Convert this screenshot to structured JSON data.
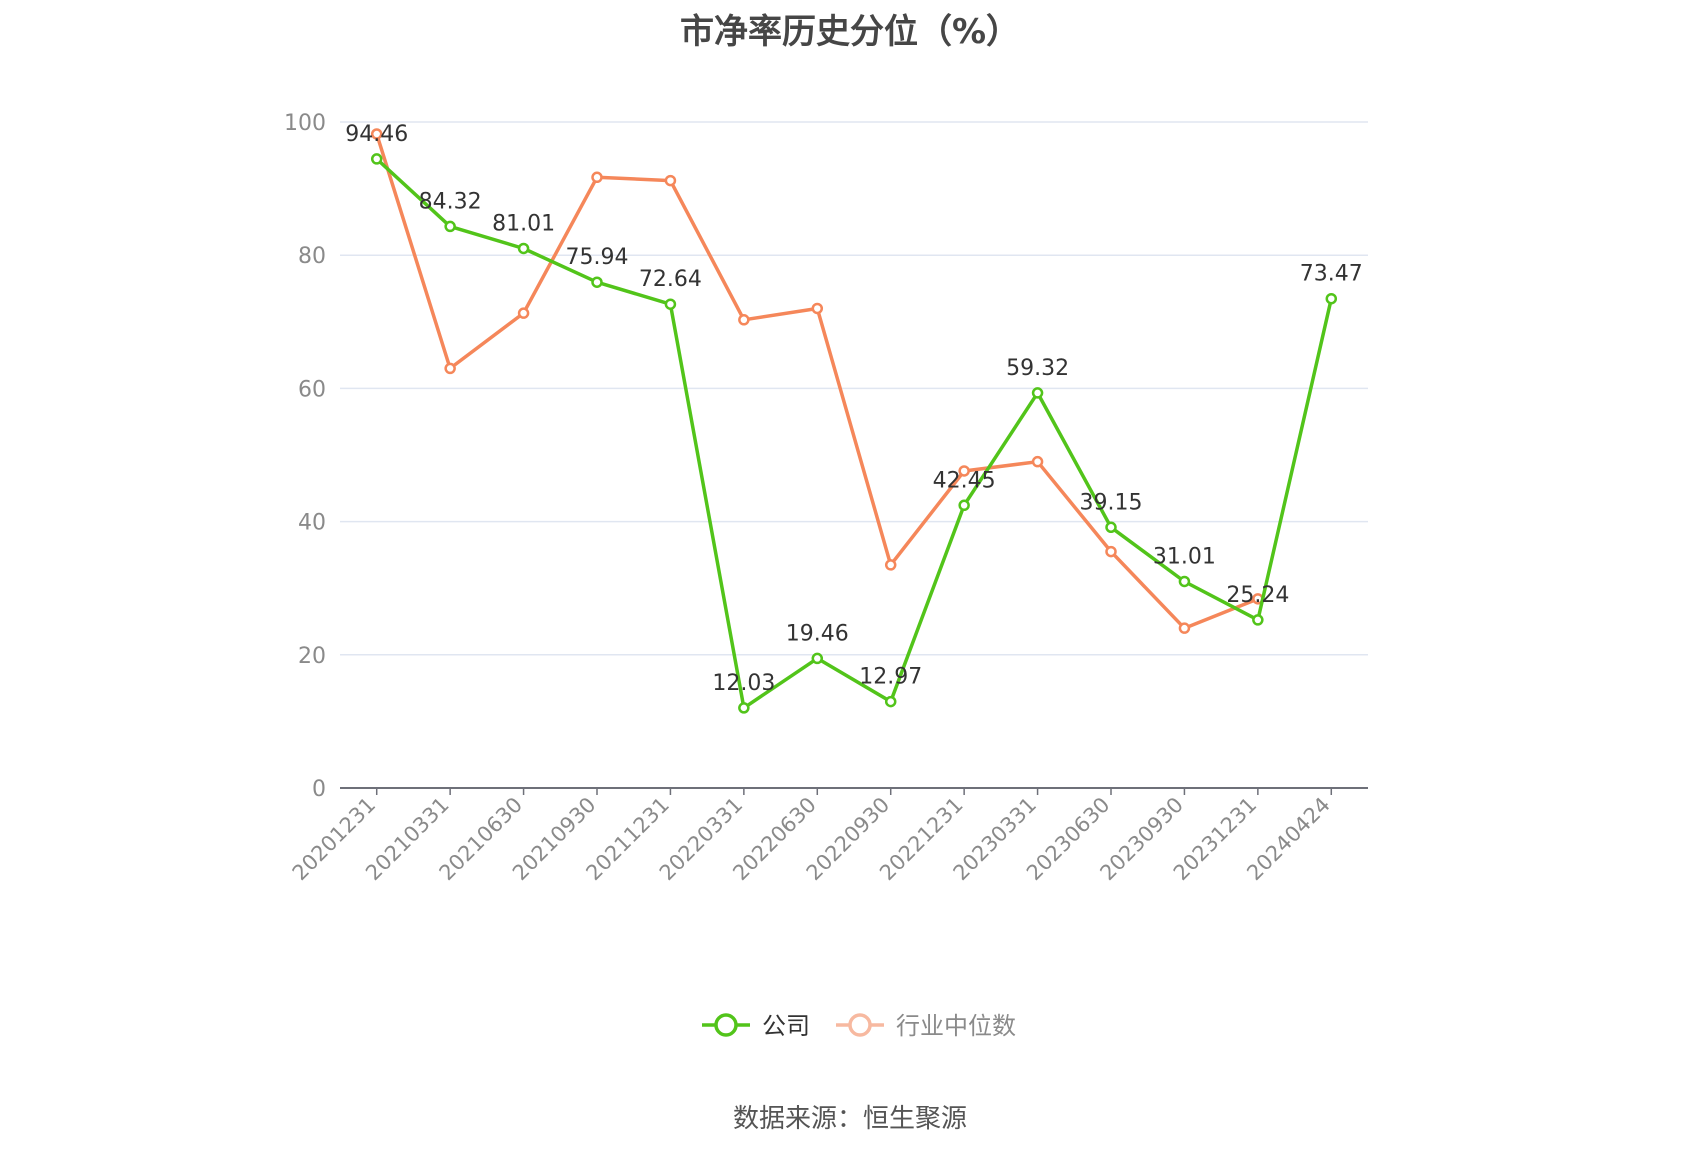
{
  "chart_data": {
    "type": "line",
    "title": "市净率历史分位（%）",
    "xlabel": "",
    "ylabel": "",
    "ylim": [
      0,
      100
    ],
    "yticks": [
      0,
      20,
      40,
      60,
      80,
      100
    ],
    "grid": true,
    "legend_position": "bottom-center",
    "categories": [
      "20201231",
      "20210331",
      "20210630",
      "20210930",
      "20211231",
      "20220331",
      "20220630",
      "20220930",
      "20221231",
      "20230331",
      "20230630",
      "20230930",
      "20231231",
      "20240424"
    ],
    "series": [
      {
        "name": "公司",
        "color": "#52c41a",
        "values": [
          94.46,
          84.32,
          81.01,
          75.94,
          72.64,
          12.03,
          19.46,
          12.97,
          42.45,
          59.32,
          39.15,
          31.01,
          25.24,
          73.47
        ],
        "labels": [
          "94.46",
          "84.32",
          "81.01",
          "75.94",
          "72.64",
          "12.03",
          "19.46",
          "12.97",
          "42.45",
          "59.32",
          "39.15",
          "31.01",
          "25.24",
          "73.47"
        ]
      },
      {
        "name": "行业中位数",
        "color": "#f5875a",
        "values": [
          98.2,
          63.0,
          71.3,
          91.7,
          91.2,
          70.3,
          72.0,
          33.5,
          47.6,
          49.0,
          35.5,
          24.0,
          28.4,
          null
        ]
      }
    ],
    "source": "数据来源：恒生聚源"
  }
}
